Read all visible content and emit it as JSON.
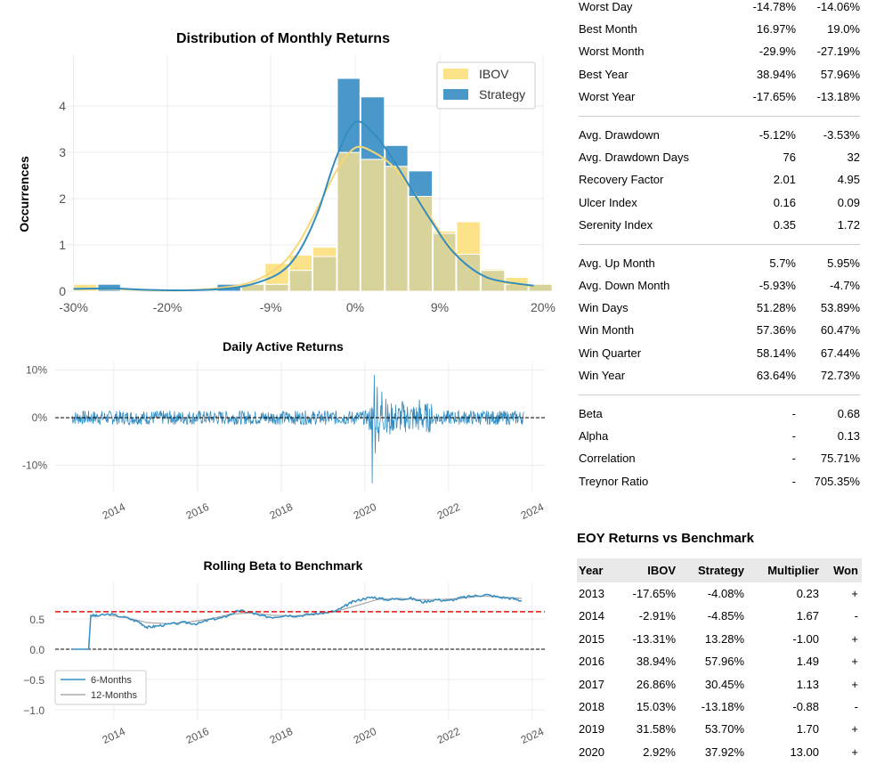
{
  "charts": {
    "distribution": {
      "title": "Distribution of Monthly Returns",
      "ylabel": "Occurrences",
      "xticks": [
        "-30%",
        "-20%",
        "-9%",
        "0%",
        "9%",
        "20%"
      ],
      "yticks": [
        "0",
        "1",
        "2",
        "3",
        "4"
      ],
      "legend": [
        "IBOV",
        "Strategy"
      ]
    },
    "active": {
      "title": "Daily Active Returns",
      "yticks": [
        "10%",
        "0%",
        "-10%"
      ],
      "xticks": [
        "2014",
        "2016",
        "2018",
        "2020",
        "2022",
        "2024"
      ]
    },
    "beta": {
      "title": "Rolling Beta to Benchmark",
      "yticks": [
        "0.5",
        "0.0",
        "−0.5",
        "−1.0"
      ],
      "xticks": [
        "2014",
        "2016",
        "2018",
        "2020",
        "2022",
        "2024"
      ],
      "legend": [
        "6-Months",
        "12-Months"
      ]
    }
  },
  "colors": {
    "ibov": "#fce288",
    "strategy": "#4a98c9",
    "overlap": "#d7d39a",
    "reference_line": "#e3120b"
  },
  "chart_data": [
    {
      "type": "bar",
      "title": "Distribution of Monthly Returns",
      "ylabel": "Occurrences",
      "xlim": [
        -31,
        20
      ],
      "ylim": [
        0,
        4.6
      ],
      "bin_edges": [
        -30,
        -27.4,
        -24.9,
        -22.3,
        -19.8,
        -17.2,
        -14.7,
        -12.1,
        -9.6,
        -7.0,
        -4.5,
        -1.9,
        0.6,
        3.2,
        5.7,
        8.3,
        10.8,
        13.4,
        16.0,
        18.5
      ],
      "series": [
        {
          "name": "IBOV",
          "values": [
            0.15,
            0,
            0,
            0,
            0,
            0,
            0,
            0.15,
            0.6,
            0.78,
            0.95,
            3.0,
            2.85,
            2.7,
            2.05,
            1.3,
            1.5,
            0.48,
            0.3,
            0.15
          ]
        },
        {
          "name": "Strategy",
          "values": [
            0,
            0.15,
            0,
            0,
            0,
            0,
            0.15,
            0.15,
            0.15,
            0.45,
            0.75,
            4.6,
            4.2,
            3.15,
            2.6,
            1.25,
            0.8,
            0.45,
            0.15,
            0.15
          ]
        }
      ],
      "kde": {
        "x": [
          -30,
          -26,
          -22,
          -18,
          -14,
          -11,
          -8,
          -6,
          -4,
          -2,
          0,
          2,
          4,
          6,
          8,
          10,
          12,
          14,
          16,
          19
        ],
        "IBOV": [
          0.05,
          0.05,
          0.02,
          0.02,
          0.08,
          0.2,
          0.55,
          1.05,
          1.8,
          2.6,
          3.1,
          3.0,
          2.7,
          2.2,
          1.6,
          1.0,
          0.55,
          0.3,
          0.18,
          0.1
        ],
        "Strategy": [
          0.05,
          0.06,
          0.03,
          0.02,
          0.05,
          0.15,
          0.4,
          0.85,
          1.7,
          2.9,
          3.65,
          3.4,
          2.85,
          2.2,
          1.55,
          0.95,
          0.55,
          0.3,
          0.2,
          0.12
        ]
      }
    },
    {
      "type": "line",
      "title": "Daily Active Returns",
      "xlim": [
        2012.6,
        2024.3
      ],
      "ylim": [
        -14,
        11
      ],
      "x_range": [
        2013.0,
        2023.8
      ],
      "baseline_amplitude": 1.5,
      "events": [
        {
          "x": 2020.18,
          "y": -13.8
        },
        {
          "x": 2020.22,
          "y": 9.0
        },
        {
          "x": 2020.25,
          "y": -7.5
        },
        {
          "x": 2020.3,
          "y": 6.5
        },
        {
          "x": 2020.33,
          "y": -5.0
        },
        {
          "x": 2020.4,
          "y": 5.5
        },
        {
          "x": 2020.5,
          "y": 4.0
        },
        {
          "x": 2020.6,
          "y": -3.5
        },
        {
          "x": 2020.9,
          "y": 3.5
        },
        {
          "x": 2021.3,
          "y": 3.8
        }
      ]
    },
    {
      "type": "line",
      "title": "Rolling Beta to Benchmark",
      "xlim": [
        2012.6,
        2024.3
      ],
      "ylim": [
        -1.2,
        0.95
      ],
      "reference_lines": [
        0.62,
        0.0
      ],
      "series": [
        {
          "name": "6-Months",
          "x": [
            2013.0,
            2013.4,
            2013.45,
            2013.6,
            2013.9,
            2014.3,
            2014.6,
            2014.8,
            2015.0,
            2015.3,
            2015.7,
            2016.0,
            2016.3,
            2016.6,
            2016.8,
            2017.0,
            2017.3,
            2017.5,
            2017.8,
            2018.1,
            2018.4,
            2018.7,
            2019.0,
            2019.3,
            2019.5,
            2019.7,
            2020.0,
            2020.2,
            2020.5,
            2020.8,
            2021.1,
            2021.4,
            2021.7,
            2022.0,
            2022.3,
            2022.6,
            2022.9,
            2023.2,
            2023.5,
            2023.75
          ],
          "y": [
            0.0,
            0.0,
            0.56,
            0.55,
            0.58,
            0.52,
            0.45,
            0.36,
            0.38,
            0.41,
            0.44,
            0.42,
            0.49,
            0.52,
            0.58,
            0.64,
            0.6,
            0.55,
            0.53,
            0.56,
            0.55,
            0.58,
            0.6,
            0.63,
            0.7,
            0.78,
            0.84,
            0.86,
            0.82,
            0.83,
            0.84,
            0.78,
            0.82,
            0.8,
            0.85,
            0.88,
            0.9,
            0.86,
            0.84,
            0.8
          ]
        },
        {
          "name": "12-Months",
          "x": [
            2013.9,
            2014.3,
            2014.8,
            2015.3,
            2015.8,
            2016.3,
            2016.8,
            2017.3,
            2017.8,
            2018.3,
            2018.8,
            2019.3,
            2019.8,
            2020.3,
            2020.8,
            2021.3,
            2021.8,
            2022.3,
            2022.8,
            2023.3,
            2023.75
          ],
          "y": [
            0.56,
            0.52,
            0.44,
            0.42,
            0.45,
            0.5,
            0.58,
            0.6,
            0.56,
            0.55,
            0.57,
            0.62,
            0.72,
            0.82,
            0.84,
            0.82,
            0.82,
            0.84,
            0.88,
            0.86,
            0.84
          ]
        }
      ]
    }
  ],
  "metrics_groups": [
    [
      {
        "label": "Worst Day",
        "benchmark": "-14.78%",
        "strategy": "-14.06%"
      },
      {
        "label": "Best Month",
        "benchmark": "16.97%",
        "strategy": "19.0%"
      },
      {
        "label": "Worst Month",
        "benchmark": "-29.9%",
        "strategy": "-27.19%"
      },
      {
        "label": "Best Year",
        "benchmark": "38.94%",
        "strategy": "57.96%"
      },
      {
        "label": "Worst Year",
        "benchmark": "-17.65%",
        "strategy": "-13.18%"
      }
    ],
    [
      {
        "label": "Avg. Drawdown",
        "benchmark": "-5.12%",
        "strategy": "-3.53%"
      },
      {
        "label": "Avg. Drawdown Days",
        "benchmark": "76",
        "strategy": "32"
      },
      {
        "label": "Recovery Factor",
        "benchmark": "2.01",
        "strategy": "4.95"
      },
      {
        "label": "Ulcer Index",
        "benchmark": "0.16",
        "strategy": "0.09"
      },
      {
        "label": "Serenity Index",
        "benchmark": "0.35",
        "strategy": "1.72"
      }
    ],
    [
      {
        "label": "Avg. Up Month",
        "benchmark": "5.7%",
        "strategy": "5.95%"
      },
      {
        "label": "Avg. Down Month",
        "benchmark": "-5.93%",
        "strategy": "-4.7%"
      },
      {
        "label": "Win Days",
        "benchmark": "51.28%",
        "strategy": "53.89%"
      },
      {
        "label": "Win Month",
        "benchmark": "57.36%",
        "strategy": "60.47%"
      },
      {
        "label": "Win Quarter",
        "benchmark": "58.14%",
        "strategy": "67.44%"
      },
      {
        "label": "Win Year",
        "benchmark": "63.64%",
        "strategy": "72.73%"
      }
    ],
    [
      {
        "label": "Beta",
        "benchmark": "-",
        "strategy": "0.68"
      },
      {
        "label": "Alpha",
        "benchmark": "-",
        "strategy": "0.13"
      },
      {
        "label": "Correlation",
        "benchmark": "-",
        "strategy": "75.71%"
      },
      {
        "label": "Treynor Ratio",
        "benchmark": "-",
        "strategy": "705.35%"
      }
    ]
  ],
  "eoy": {
    "title": "EOY Returns vs Benchmark",
    "headers": [
      "Year",
      "IBOV",
      "Strategy",
      "Multiplier",
      "Won"
    ],
    "rows": [
      [
        "2013",
        "-17.65%",
        "-4.08%",
        "0.23",
        "+"
      ],
      [
        "2014",
        "-2.91%",
        "-4.85%",
        "1.67",
        "-"
      ],
      [
        "2015",
        "-13.31%",
        "13.28%",
        "-1.00",
        "+"
      ],
      [
        "2016",
        "38.94%",
        "57.96%",
        "1.49",
        "+"
      ],
      [
        "2017",
        "26.86%",
        "30.45%",
        "1.13",
        "+"
      ],
      [
        "2018",
        "15.03%",
        "-13.18%",
        "-0.88",
        "-"
      ],
      [
        "2019",
        "31.58%",
        "53.70%",
        "1.70",
        "+"
      ],
      [
        "2020",
        "2.92%",
        "37.92%",
        "13.00",
        "+"
      ]
    ]
  }
}
